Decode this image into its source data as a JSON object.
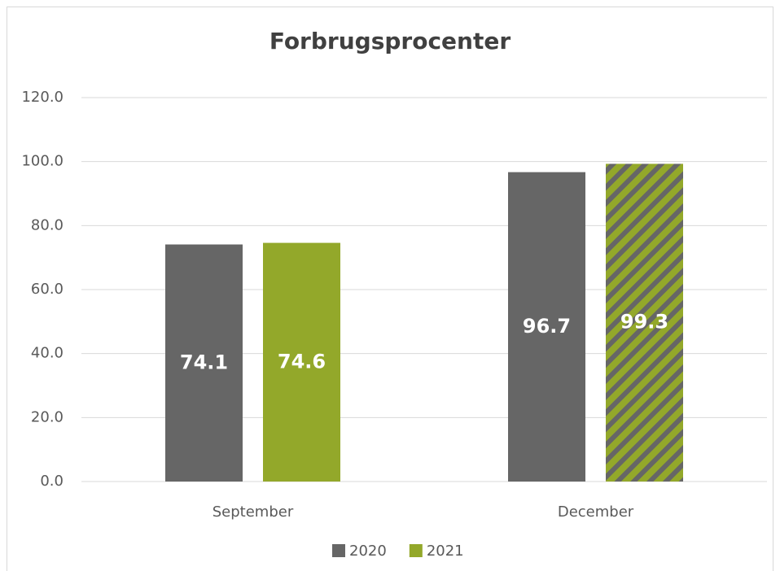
{
  "chart_data": {
    "type": "bar",
    "title": "Forbrugsprocenter",
    "categories": [
      "September",
      "December"
    ],
    "series": [
      {
        "name": "2020",
        "color": "#666666",
        "values": [
          74.1,
          96.7
        ]
      },
      {
        "name": "2021",
        "color": "#93a82a",
        "values": [
          74.6,
          99.3
        ],
        "hatched": [
          false,
          true
        ]
      }
    ],
    "ylim": [
      0,
      120
    ],
    "yticks": [
      {
        "value": 0,
        "label": "0.0"
      },
      {
        "value": 20,
        "label": "20.0"
      },
      {
        "value": 40,
        "label": "40.0"
      },
      {
        "value": 60,
        "label": "60.0"
      },
      {
        "value": 80,
        "label": "80.0"
      },
      {
        "value": 100,
        "label": "100.0"
      },
      {
        "value": 120,
        "label": "120.0"
      }
    ],
    "grid": true,
    "legend": "bottom"
  }
}
